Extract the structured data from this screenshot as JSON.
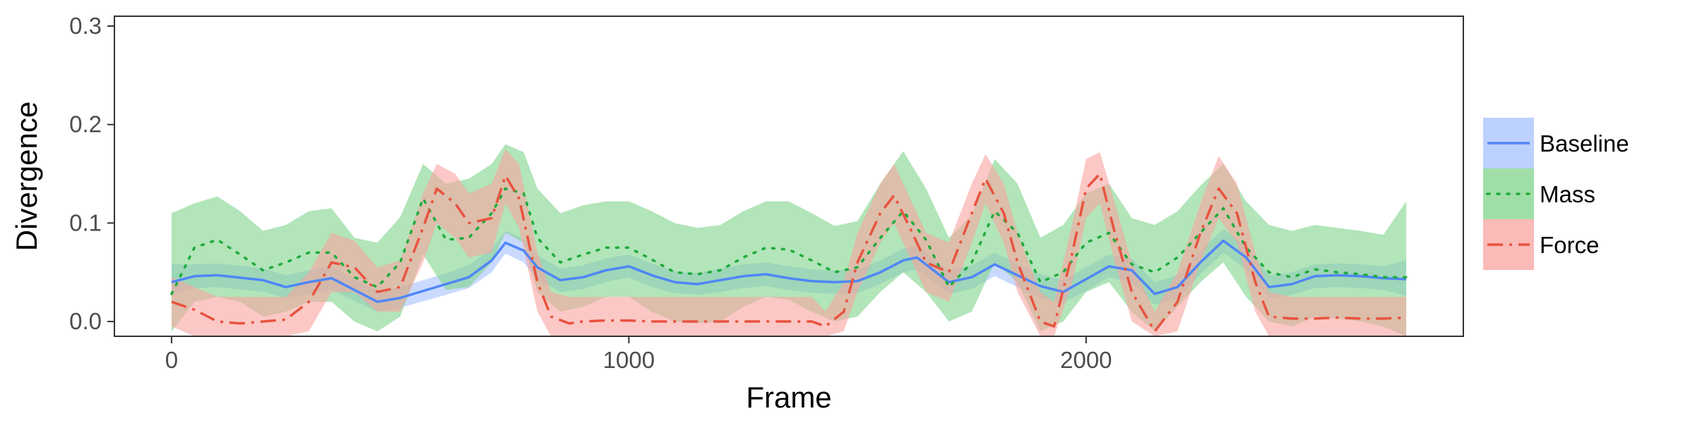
{
  "chart_data": {
    "type": "line",
    "title": "",
    "xlabel": "Frame",
    "ylabel": "Divergence",
    "xlim": [
      -125,
      2825
    ],
    "ylim": [
      -0.015,
      0.31
    ],
    "xticks": [
      0,
      1000,
      2000
    ],
    "yticks": [
      0.0,
      0.1,
      0.2,
      0.3
    ],
    "xtick_labels": [
      "0",
      "1000",
      "2000"
    ],
    "ytick_labels": [
      "0.0",
      "0.1",
      "0.2",
      "0.3"
    ],
    "grid": false,
    "legend_position": "right",
    "series": [
      {
        "name": "Baseline",
        "color": "#4f86f7",
        "band_color": "#a7c1ff",
        "line_style": "solid",
        "x": [
          0,
          50,
          100,
          200,
          250,
          300,
          350,
          400,
          450,
          500,
          600,
          650,
          700,
          730,
          770,
          800,
          850,
          900,
          950,
          1000,
          1050,
          1100,
          1150,
          1200,
          1250,
          1300,
          1350,
          1400,
          1450,
          1500,
          1550,
          1600,
          1630,
          1700,
          1750,
          1800,
          1850,
          1900,
          1950,
          2000,
          2050,
          2100,
          2150,
          2200,
          2250,
          2300,
          2350,
          2400,
          2450,
          2500,
          2550,
          2600,
          2650,
          2700
        ],
        "y": [
          0.04,
          0.046,
          0.047,
          0.042,
          0.035,
          0.04,
          0.044,
          0.032,
          0.02,
          0.024,
          0.038,
          0.045,
          0.062,
          0.08,
          0.072,
          0.055,
          0.042,
          0.045,
          0.052,
          0.056,
          0.047,
          0.04,
          0.038,
          0.042,
          0.046,
          0.048,
          0.044,
          0.041,
          0.04,
          0.041,
          0.05,
          0.062,
          0.065,
          0.04,
          0.045,
          0.058,
          0.047,
          0.036,
          0.03,
          0.043,
          0.056,
          0.052,
          0.028,
          0.035,
          0.06,
          0.082,
          0.065,
          0.035,
          0.038,
          0.046,
          0.047,
          0.046,
          0.044,
          0.043
        ],
        "lower": [
          0.028,
          0.034,
          0.035,
          0.03,
          0.024,
          0.028,
          0.032,
          0.021,
          0.01,
          0.014,
          0.027,
          0.034,
          0.05,
          0.069,
          0.06,
          0.043,
          0.03,
          0.033,
          0.04,
          0.045,
          0.035,
          0.029,
          0.027,
          0.03,
          0.034,
          0.036,
          0.032,
          0.029,
          0.028,
          0.029,
          0.038,
          0.05,
          0.053,
          0.028,
          0.033,
          0.046,
          0.035,
          0.024,
          0.019,
          0.031,
          0.045,
          0.04,
          0.017,
          0.023,
          0.048,
          0.07,
          0.053,
          0.024,
          0.027,
          0.034,
          0.035,
          0.034,
          0.032,
          0.026
        ],
        "upper": [
          0.058,
          0.058,
          0.059,
          0.054,
          0.047,
          0.052,
          0.056,
          0.044,
          0.031,
          0.035,
          0.049,
          0.057,
          0.074,
          0.092,
          0.084,
          0.067,
          0.054,
          0.057,
          0.064,
          0.068,
          0.059,
          0.051,
          0.049,
          0.054,
          0.058,
          0.06,
          0.056,
          0.053,
          0.052,
          0.053,
          0.062,
          0.074,
          0.077,
          0.052,
          0.057,
          0.07,
          0.059,
          0.048,
          0.042,
          0.055,
          0.068,
          0.064,
          0.04,
          0.047,
          0.072,
          0.094,
          0.077,
          0.047,
          0.05,
          0.058,
          0.059,
          0.058,
          0.056,
          0.062
        ]
      },
      {
        "name": "Mass",
        "color": "#1fab3d",
        "band_color": "#7fd48a",
        "line_style": "dotted",
        "x": [
          0,
          50,
          100,
          150,
          200,
          250,
          300,
          350,
          400,
          450,
          500,
          550,
          600,
          650,
          700,
          730,
          770,
          800,
          850,
          900,
          950,
          1000,
          1050,
          1100,
          1150,
          1200,
          1250,
          1300,
          1350,
          1400,
          1450,
          1500,
          1550,
          1600,
          1650,
          1700,
          1750,
          1800,
          1850,
          1900,
          1950,
          2000,
          2050,
          2100,
          2150,
          2200,
          2250,
          2300,
          2350,
          2400,
          2450,
          2500,
          2550,
          2600,
          2650,
          2700
        ],
        "y": [
          0.028,
          0.075,
          0.083,
          0.068,
          0.052,
          0.06,
          0.07,
          0.07,
          0.045,
          0.035,
          0.06,
          0.125,
          0.083,
          0.085,
          0.11,
          0.135,
          0.13,
          0.085,
          0.06,
          0.068,
          0.075,
          0.075,
          0.063,
          0.05,
          0.048,
          0.052,
          0.065,
          0.075,
          0.073,
          0.062,
          0.05,
          0.055,
          0.085,
          0.112,
          0.083,
          0.035,
          0.06,
          0.112,
          0.09,
          0.04,
          0.05,
          0.08,
          0.09,
          0.058,
          0.05,
          0.065,
          0.09,
          0.115,
          0.075,
          0.05,
          0.045,
          0.053,
          0.05,
          0.048,
          0.045,
          0.045
        ],
        "lower": [
          -0.01,
          0.02,
          0.025,
          0.02,
          0.005,
          0.01,
          0.02,
          0.02,
          0.0,
          -0.01,
          0.005,
          0.068,
          0.032,
          0.035,
          0.06,
          0.09,
          0.08,
          0.03,
          0.01,
          0.015,
          0.025,
          0.025,
          0.01,
          0.0,
          -0.002,
          0.0,
          0.015,
          0.025,
          0.022,
          0.01,
          0.0,
          0.005,
          0.03,
          0.05,
          0.03,
          0.0,
          0.01,
          0.06,
          0.04,
          -0.01,
          0.0,
          0.03,
          0.04,
          0.01,
          -0.01,
          0.015,
          0.04,
          0.06,
          0.025,
          0.0,
          -0.005,
          0.005,
          0.003,
          0.0,
          -0.005,
          -0.015
        ],
        "upper": [
          0.11,
          0.12,
          0.127,
          0.112,
          0.092,
          0.098,
          0.112,
          0.115,
          0.085,
          0.08,
          0.106,
          0.16,
          0.14,
          0.145,
          0.16,
          0.18,
          0.172,
          0.135,
          0.11,
          0.118,
          0.122,
          0.122,
          0.112,
          0.1,
          0.095,
          0.098,
          0.112,
          0.122,
          0.122,
          0.11,
          0.097,
          0.102,
          0.14,
          0.173,
          0.135,
          0.085,
          0.108,
          0.165,
          0.14,
          0.085,
          0.098,
          0.13,
          0.14,
          0.105,
          0.098,
          0.112,
          0.138,
          0.16,
          0.122,
          0.098,
          0.092,
          0.098,
          0.095,
          0.092,
          0.088,
          0.122
        ]
      },
      {
        "name": "Force",
        "color": "#e8533f",
        "band_color": "#f8a3a0",
        "line_style": "dashdot",
        "x": [
          0,
          50,
          100,
          150,
          200,
          250,
          300,
          350,
          400,
          450,
          500,
          550,
          580,
          620,
          650,
          700,
          730,
          760,
          800,
          830,
          870,
          900,
          950,
          1000,
          1050,
          1100,
          1150,
          1200,
          1250,
          1300,
          1350,
          1400,
          1430,
          1470,
          1500,
          1550,
          1580,
          1620,
          1650,
          1700,
          1750,
          1780,
          1820,
          1850,
          1900,
          1930,
          1970,
          2000,
          2030,
          2060,
          2100,
          2150,
          2200,
          2250,
          2290,
          2330,
          2370,
          2400,
          2450,
          2500,
          2550,
          2600,
          2650,
          2700
        ],
        "y": [
          0.02,
          0.012,
          0.0,
          -0.002,
          0.0,
          0.002,
          0.02,
          0.06,
          0.055,
          0.03,
          0.035,
          0.095,
          0.135,
          0.12,
          0.1,
          0.105,
          0.148,
          0.125,
          0.04,
          0.005,
          -0.002,
          0.0,
          0.001,
          0.001,
          0.0,
          0.0,
          0.0,
          0.0,
          0.0,
          0.0,
          0.0,
          0.0,
          -0.005,
          0.01,
          0.06,
          0.11,
          0.128,
          0.09,
          0.06,
          0.05,
          0.11,
          0.145,
          0.11,
          0.06,
          0.0,
          -0.005,
          0.07,
          0.135,
          0.15,
          0.095,
          0.03,
          -0.01,
          0.02,
          0.09,
          0.135,
          0.11,
          0.04,
          0.005,
          0.003,
          0.003,
          0.004,
          0.003,
          0.003,
          0.004
        ],
        "lower": [
          -0.005,
          -0.015,
          -0.015,
          -0.015,
          -0.015,
          -0.015,
          -0.01,
          0.03,
          0.03,
          0.01,
          0.01,
          0.06,
          0.1,
          0.085,
          0.065,
          0.07,
          0.12,
          0.095,
          0.01,
          -0.015,
          -0.015,
          -0.015,
          -0.015,
          -0.015,
          -0.015,
          -0.015,
          -0.015,
          -0.015,
          -0.015,
          -0.015,
          -0.015,
          -0.015,
          -0.015,
          -0.01,
          0.03,
          0.08,
          0.1,
          0.06,
          0.03,
          0.02,
          0.08,
          0.12,
          0.08,
          0.03,
          -0.015,
          -0.015,
          0.04,
          0.105,
          0.12,
          0.065,
          0.0,
          -0.015,
          -0.01,
          0.06,
          0.105,
          0.08,
          0.01,
          -0.015,
          -0.015,
          -0.015,
          -0.015,
          -0.015,
          -0.015,
          -0.015
        ],
        "upper": [
          0.045,
          0.035,
          0.025,
          0.025,
          0.025,
          0.025,
          0.05,
          0.09,
          0.082,
          0.055,
          0.062,
          0.13,
          0.16,
          0.15,
          0.13,
          0.14,
          0.175,
          0.16,
          0.07,
          0.03,
          0.025,
          0.025,
          0.025,
          0.025,
          0.025,
          0.025,
          0.025,
          0.025,
          0.025,
          0.025,
          0.025,
          0.025,
          0.01,
          0.04,
          0.09,
          0.14,
          0.16,
          0.12,
          0.09,
          0.08,
          0.14,
          0.17,
          0.14,
          0.09,
          0.03,
          0.02,
          0.1,
          0.165,
          0.172,
          0.125,
          0.06,
          0.01,
          0.05,
          0.12,
          0.168,
          0.14,
          0.07,
          0.03,
          0.025,
          0.025,
          0.025,
          0.025,
          0.025,
          0.025
        ]
      }
    ]
  }
}
